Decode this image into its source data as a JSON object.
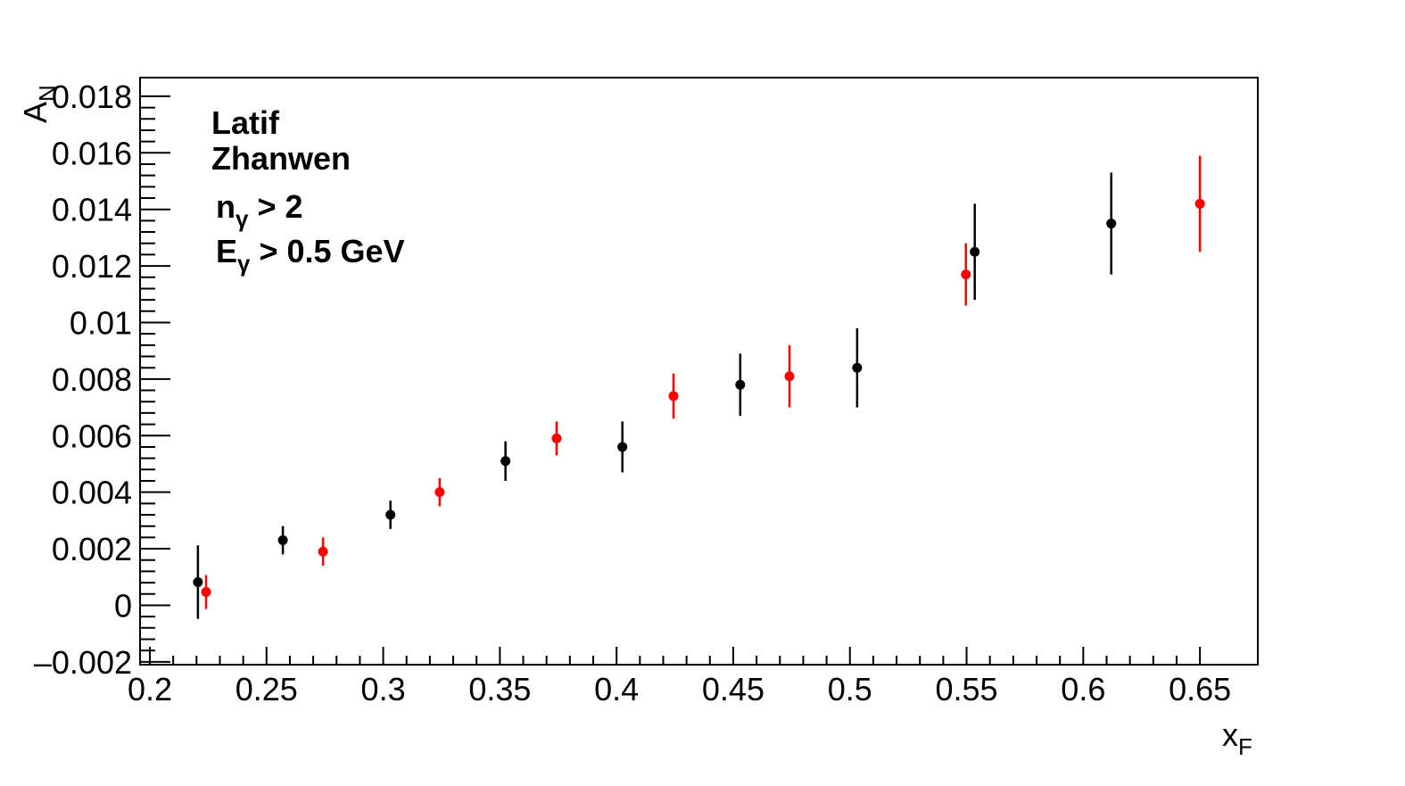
{
  "chart_data": {
    "type": "scatter",
    "x_label": {
      "main": "x",
      "sub": "F"
    },
    "y_label": {
      "main": "A",
      "sub": "N"
    },
    "annotations": [
      {
        "main": "n",
        "sub": "γ",
        "rest": " > 2"
      },
      {
        "main": "E",
        "sub": "γ",
        "rest": " > 0.5 GeV"
      }
    ],
    "xlim": [
      0.1958,
      0.6748
    ],
    "ylim": [
      -0.0021,
      0.01866
    ],
    "xticks": [
      0.2,
      0.25,
      0.3,
      0.35,
      0.4,
      0.45,
      0.5,
      0.55,
      0.6,
      0.65
    ],
    "yticks": [
      {
        "value": -0.002,
        "label": "–0.002"
      },
      0,
      0.002,
      0.004,
      0.006,
      0.008,
      0.01,
      0.012,
      0.014,
      0.016,
      0.018
    ],
    "series": [
      {
        "name": "Latif",
        "color": "#ff0000",
        "x": [
          0.2241,
          0.2742,
          0.3242,
          0.3743,
          0.4244,
          0.4741,
          0.5497,
          0.65
        ],
        "values": [
          0.00047,
          0.0019,
          0.004,
          0.0059,
          0.0074,
          0.0081,
          0.0117,
          0.0142
        ],
        "errors": [
          0.0006,
          0.0005,
          0.0005,
          0.0006,
          0.0008,
          0.0011,
          0.0011,
          0.0017
        ]
      },
      {
        "name": "Zhanwen",
        "color": "#000000",
        "x": [
          0.2206,
          0.257,
          0.3031,
          0.3524,
          0.4025,
          0.453,
          0.5031,
          0.5535,
          0.612
        ],
        "values": [
          0.00082,
          0.0023,
          0.0032,
          0.0051,
          0.0056,
          0.0078,
          0.0084,
          0.0125,
          0.0135
        ],
        "errors": [
          0.0013,
          0.0005,
          0.0005,
          0.0007,
          0.0009,
          0.0011,
          0.0014,
          0.0017,
          0.0018
        ]
      }
    ]
  }
}
